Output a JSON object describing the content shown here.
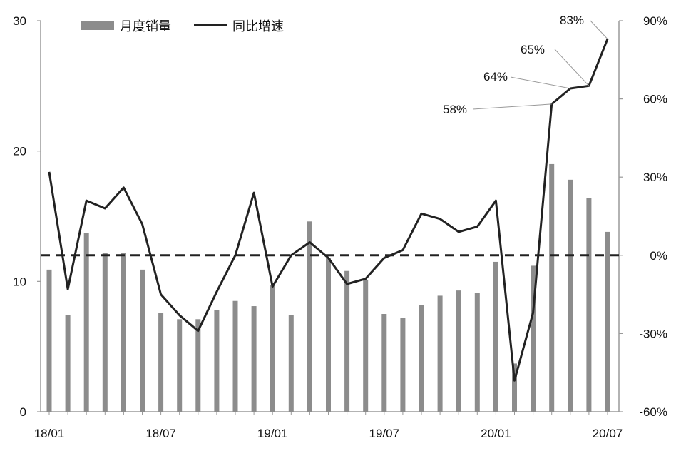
{
  "chart_data": {
    "type": "bar",
    "x": [
      "18/01",
      "18/02",
      "18/03",
      "18/04",
      "18/05",
      "18/06",
      "18/07",
      "18/08",
      "18/09",
      "18/10",
      "18/11",
      "18/12",
      "19/01",
      "19/02",
      "19/03",
      "19/04",
      "19/05",
      "19/06",
      "19/07",
      "19/08",
      "19/09",
      "19/10",
      "19/11",
      "19/12",
      "20/01",
      "20/02",
      "20/03",
      "20/04",
      "20/05",
      "20/06",
      "20/07"
    ],
    "x_tick_labels": [
      "18/01",
      "18/07",
      "19/01",
      "19/07",
      "20/01",
      "20/07"
    ],
    "series": [
      {
        "name": "月度销量",
        "type": "bar",
        "axis": "left",
        "color": "#8c8c8c",
        "values": [
          10.9,
          7.4,
          13.7,
          12.2,
          12.2,
          10.9,
          7.6,
          7.1,
          7.1,
          7.8,
          8.5,
          8.1,
          9.7,
          7.4,
          14.6,
          11.8,
          10.8,
          10.1,
          7.5,
          7.2,
          8.2,
          8.9,
          9.3,
          9.1,
          11.5,
          3.7,
          11.2,
          19.0,
          17.8,
          16.4,
          13.8
        ]
      },
      {
        "name": "同比增速",
        "type": "line",
        "axis": "right",
        "color": "#222222",
        "values": [
          32,
          -13,
          21,
          18,
          26,
          12,
          -15,
          -23,
          -29,
          -14,
          0,
          24,
          -12,
          0,
          5,
          -1,
          -11,
          -9,
          -1,
          2,
          16,
          14,
          9,
          11,
          21,
          -48,
          -22,
          58,
          64,
          65,
          83
        ]
      }
    ],
    "reference_line": {
      "axis": "right",
      "value": 0,
      "style": "dashed"
    },
    "y_left": {
      "lim": [
        0,
        30
      ],
      "ticks": [
        0,
        10,
        20,
        30
      ],
      "tick_labels": [
        "0",
        "10",
        "20",
        "30"
      ]
    },
    "y_right": {
      "lim": [
        -60,
        90
      ],
      "ticks": [
        -60,
        -30,
        0,
        30,
        60,
        90
      ],
      "tick_labels": [
        "-60%",
        "-30%",
        "0%",
        "30%",
        "60%",
        "90%"
      ]
    },
    "annotations": [
      {
        "text": "58%",
        "index": 27
      },
      {
        "text": "64%",
        "index": 28
      },
      {
        "text": "65%",
        "index": 29
      },
      {
        "text": "83%",
        "index": 30
      }
    ],
    "legend": {
      "placement": "top-left"
    },
    "grid": false,
    "title": "",
    "xlabel": "",
    "ylabel": ""
  }
}
